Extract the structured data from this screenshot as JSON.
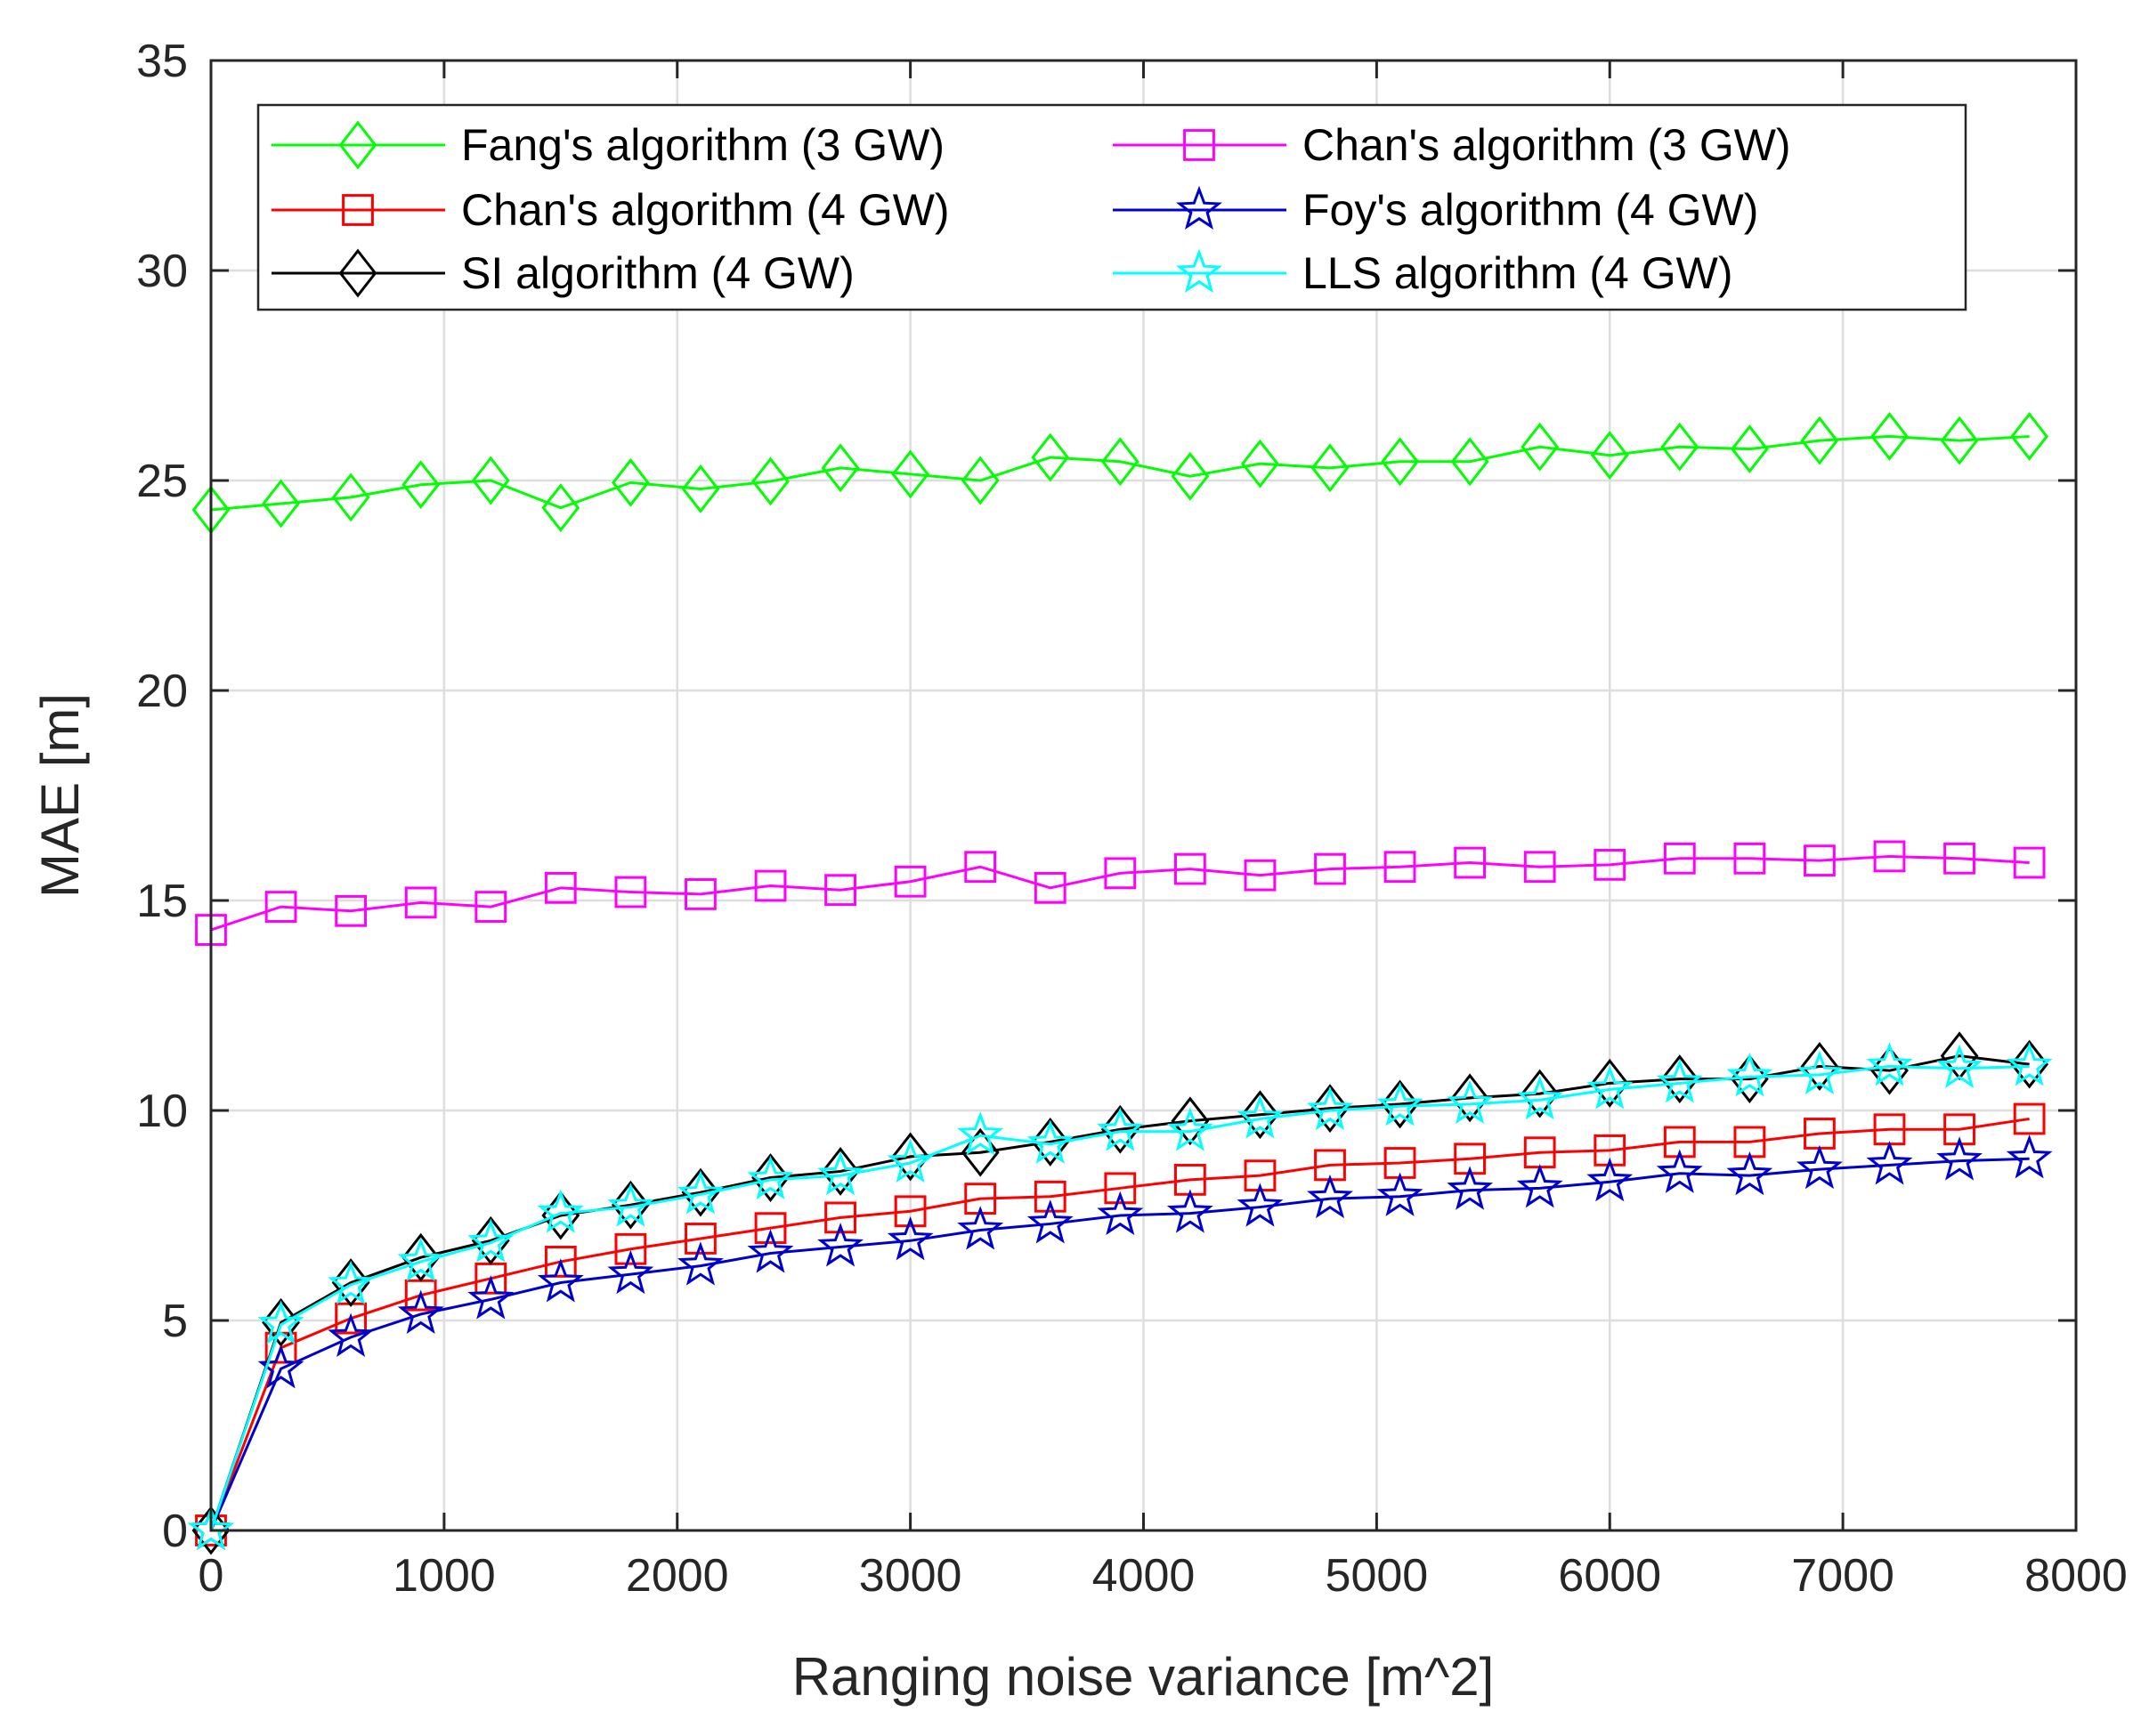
{
  "chart_data": {
    "type": "line",
    "title": "",
    "xlabel": "Ranging noise variance [m^2]",
    "ylabel": "MAE [m]",
    "xlim": [
      0,
      8000
    ],
    "ylim": [
      0,
      35
    ],
    "grid": true,
    "legend_position": "top",
    "x_ticks": [
      0,
      1000,
      2000,
      3000,
      4000,
      5000,
      6000,
      7000,
      8000
    ],
    "y_ticks": [
      0,
      5,
      10,
      15,
      20,
      25,
      30,
      35
    ],
    "x_tick_labels": [
      "0",
      "1000",
      "2000",
      "3000",
      "4000",
      "5000",
      "6000",
      "7000",
      "8000"
    ],
    "y_tick_labels": [
      "0",
      "5",
      "10",
      "15",
      "20",
      "25",
      "30",
      "35"
    ],
    "x": [
      0,
      300,
      600,
      900,
      1200,
      1500,
      1800,
      2100,
      2400,
      2700,
      3000,
      3300,
      3600,
      3900,
      4200,
      4500,
      4800,
      5100,
      5400,
      5700,
      6000,
      6300,
      6600,
      6900,
      7200,
      7500,
      7800
    ],
    "series": [
      {
        "name": "Fang's algorithm (3 GW)",
        "color": "#00ff00",
        "marker": "diamond",
        "values": [
          24.3,
          24.45,
          24.6,
          24.9,
          25.0,
          24.35,
          24.95,
          24.8,
          24.98,
          25.3,
          25.15,
          25.0,
          25.55,
          25.45,
          25.1,
          25.4,
          25.3,
          25.45,
          25.45,
          25.8,
          25.6,
          25.8,
          25.75,
          25.95,
          26.05,
          25.95,
          26.05
        ]
      },
      {
        "name": "Chan's algorithm (3 GW)",
        "color": "#ff00ff",
        "marker": "square",
        "values": [
          14.3,
          14.85,
          14.75,
          14.95,
          14.85,
          15.3,
          15.2,
          15.15,
          15.35,
          15.25,
          15.45,
          15.8,
          15.3,
          15.65,
          15.75,
          15.6,
          15.75,
          15.8,
          15.9,
          15.8,
          15.85,
          16.0,
          16.0,
          15.95,
          16.05,
          16.0,
          15.9
        ]
      },
      {
        "name": "Chan's algorithm (4 GW)",
        "color": "#ff0000",
        "marker": "square",
        "values": [
          0.0,
          4.35,
          5.05,
          5.6,
          6.0,
          6.4,
          6.7,
          6.95,
          7.2,
          7.45,
          7.6,
          7.9,
          7.95,
          8.15,
          8.35,
          8.45,
          8.7,
          8.75,
          8.85,
          9.0,
          9.05,
          9.25,
          9.25,
          9.45,
          9.55,
          9.55,
          9.8
        ]
      },
      {
        "name": "Foy's algorithm (4 GW)",
        "color": "#0000cc",
        "marker": "star",
        "values": [
          0.0,
          3.85,
          4.6,
          5.15,
          5.5,
          5.9,
          6.1,
          6.3,
          6.6,
          6.75,
          6.9,
          7.15,
          7.3,
          7.5,
          7.55,
          7.7,
          7.9,
          7.95,
          8.1,
          8.15,
          8.3,
          8.5,
          8.45,
          8.6,
          8.7,
          8.8,
          8.85
        ]
      },
      {
        "name": "SI algorithm (4 GW)",
        "color": "#000000",
        "marker": "diamond",
        "values": [
          0.0,
          4.95,
          5.9,
          6.5,
          6.9,
          7.5,
          7.75,
          8.05,
          8.4,
          8.55,
          8.9,
          9.0,
          9.25,
          9.55,
          9.75,
          9.9,
          10.05,
          10.15,
          10.3,
          10.4,
          10.65,
          10.75,
          10.75,
          11.05,
          10.95,
          11.3,
          11.1
        ]
      },
      {
        "name": "LLS algorithm (4 GW)",
        "color": "#00ffff",
        "marker": "star",
        "values": [
          0.0,
          4.9,
          5.85,
          6.4,
          6.85,
          7.55,
          7.7,
          8.0,
          8.35,
          8.45,
          8.75,
          9.4,
          9.2,
          9.5,
          9.5,
          9.8,
          10.0,
          10.1,
          10.15,
          10.25,
          10.5,
          10.65,
          10.8,
          10.85,
          11.05,
          11.0,
          11.05
        ]
      }
    ]
  }
}
